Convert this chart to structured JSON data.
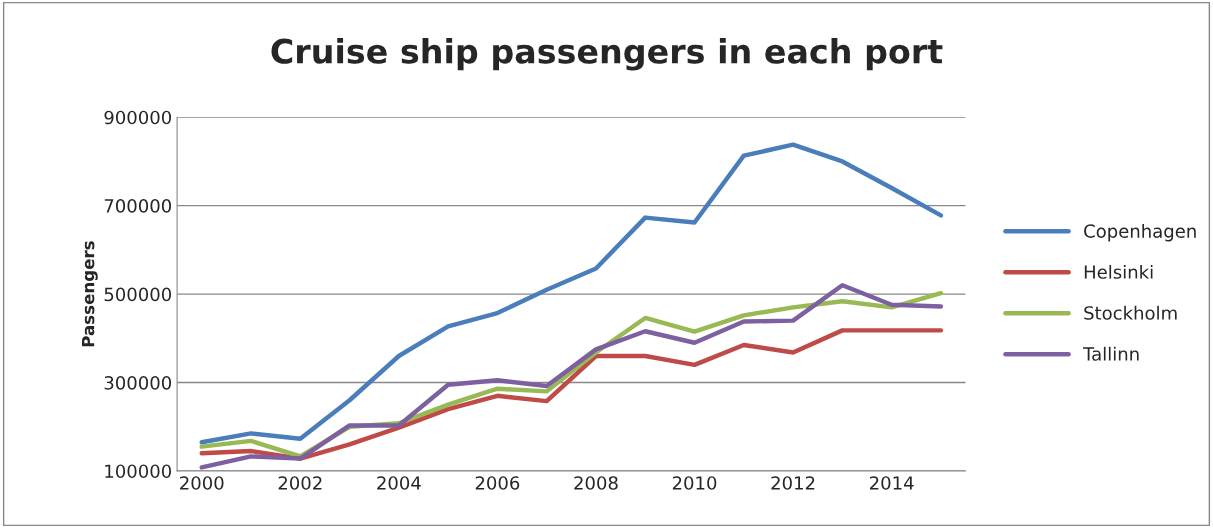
{
  "chart_data": {
    "type": "line",
    "title": "Cruise ship passengers in each port",
    "ylabel": "Passengers",
    "x": [
      2000,
      2001,
      2002,
      2003,
      2004,
      2005,
      2006,
      2007,
      2008,
      2009,
      2010,
      2011,
      2012,
      2013,
      2014,
      2015
    ],
    "series": [
      {
        "name": "Copenhagen",
        "color": "#4a7ebb",
        "values": [
          165000,
          185000,
          173000,
          260000,
          360000,
          427000,
          457000,
          510000,
          558000,
          673000,
          662000,
          813000,
          838000,
          800000,
          740000,
          678000
        ]
      },
      {
        "name": "Helsinki",
        "color": "#be4b48",
        "values": [
          140000,
          145000,
          128000,
          160000,
          198000,
          240000,
          270000,
          258000,
          360000,
          360000,
          340000,
          385000,
          368000,
          418000,
          418000,
          418000
        ]
      },
      {
        "name": "Stockholm",
        "color": "#98b954",
        "values": [
          155000,
          168000,
          133000,
          200000,
          208000,
          250000,
          286000,
          280000,
          368000,
          446000,
          415000,
          452000,
          470000,
          484000,
          470000,
          502000
        ]
      },
      {
        "name": "Tallinn",
        "color": "#7d60a0",
        "values": [
          108000,
          133000,
          128000,
          203000,
          203000,
          295000,
          305000,
          292000,
          375000,
          416000,
          390000,
          438000,
          440000,
          520000,
          476000,
          472000
        ]
      }
    ],
    "xlim": [
      1999.5,
      2015.5
    ],
    "xticks": [
      2000,
      2002,
      2004,
      2006,
      2008,
      2010,
      2012,
      2014
    ],
    "ylim": [
      100000,
      900000
    ],
    "yticks": [
      100000,
      300000,
      500000,
      700000,
      900000
    ],
    "grid": "y",
    "legend": "right",
    "marker": "none",
    "line_style": "solid"
  }
}
